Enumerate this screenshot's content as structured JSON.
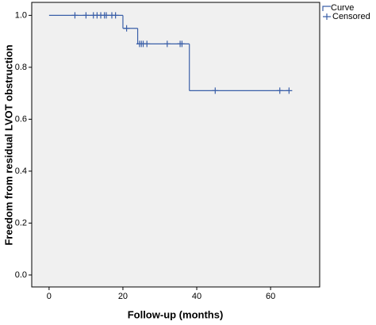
{
  "chart_data": {
    "type": "km",
    "x_label": "Follow-up (months)",
    "y_label": "Freedom from residual LVOT obstruction",
    "series": [
      {
        "name": "Curve",
        "color": "#3a5fa8",
        "x": [
          0,
          20,
          24,
          38
        ],
        "values": [
          1.0,
          0.95,
          0.89,
          0.71
        ],
        "end_x": 65
      },
      {
        "name": "Censored",
        "color": "#3a5fa8",
        "x": [
          7,
          10,
          12,
          13,
          14,
          15,
          15.5,
          17,
          18,
          21,
          24.5,
          25,
          25.5,
          26.5,
          32,
          35.5,
          36,
          45,
          62.5,
          65
        ],
        "values": [
          1.0,
          1.0,
          1.0,
          1.0,
          1.0,
          1.0,
          1.0,
          1.0,
          1.0,
          0.95,
          0.89,
          0.89,
          0.89,
          0.89,
          0.89,
          0.89,
          0.89,
          0.71,
          0.71,
          0.71
        ]
      }
    ],
    "xlim": [
      -4.7,
      73.3
    ],
    "ylim": [
      -0.046,
      1.05
    ],
    "xticks": [
      0,
      20,
      40,
      60
    ],
    "yticks": [
      {
        "value": 0,
        "label": "0.0"
      },
      0.2,
      0.4,
      0.6,
      0.8,
      {
        "value": 1,
        "label": "1.0"
      }
    ]
  }
}
